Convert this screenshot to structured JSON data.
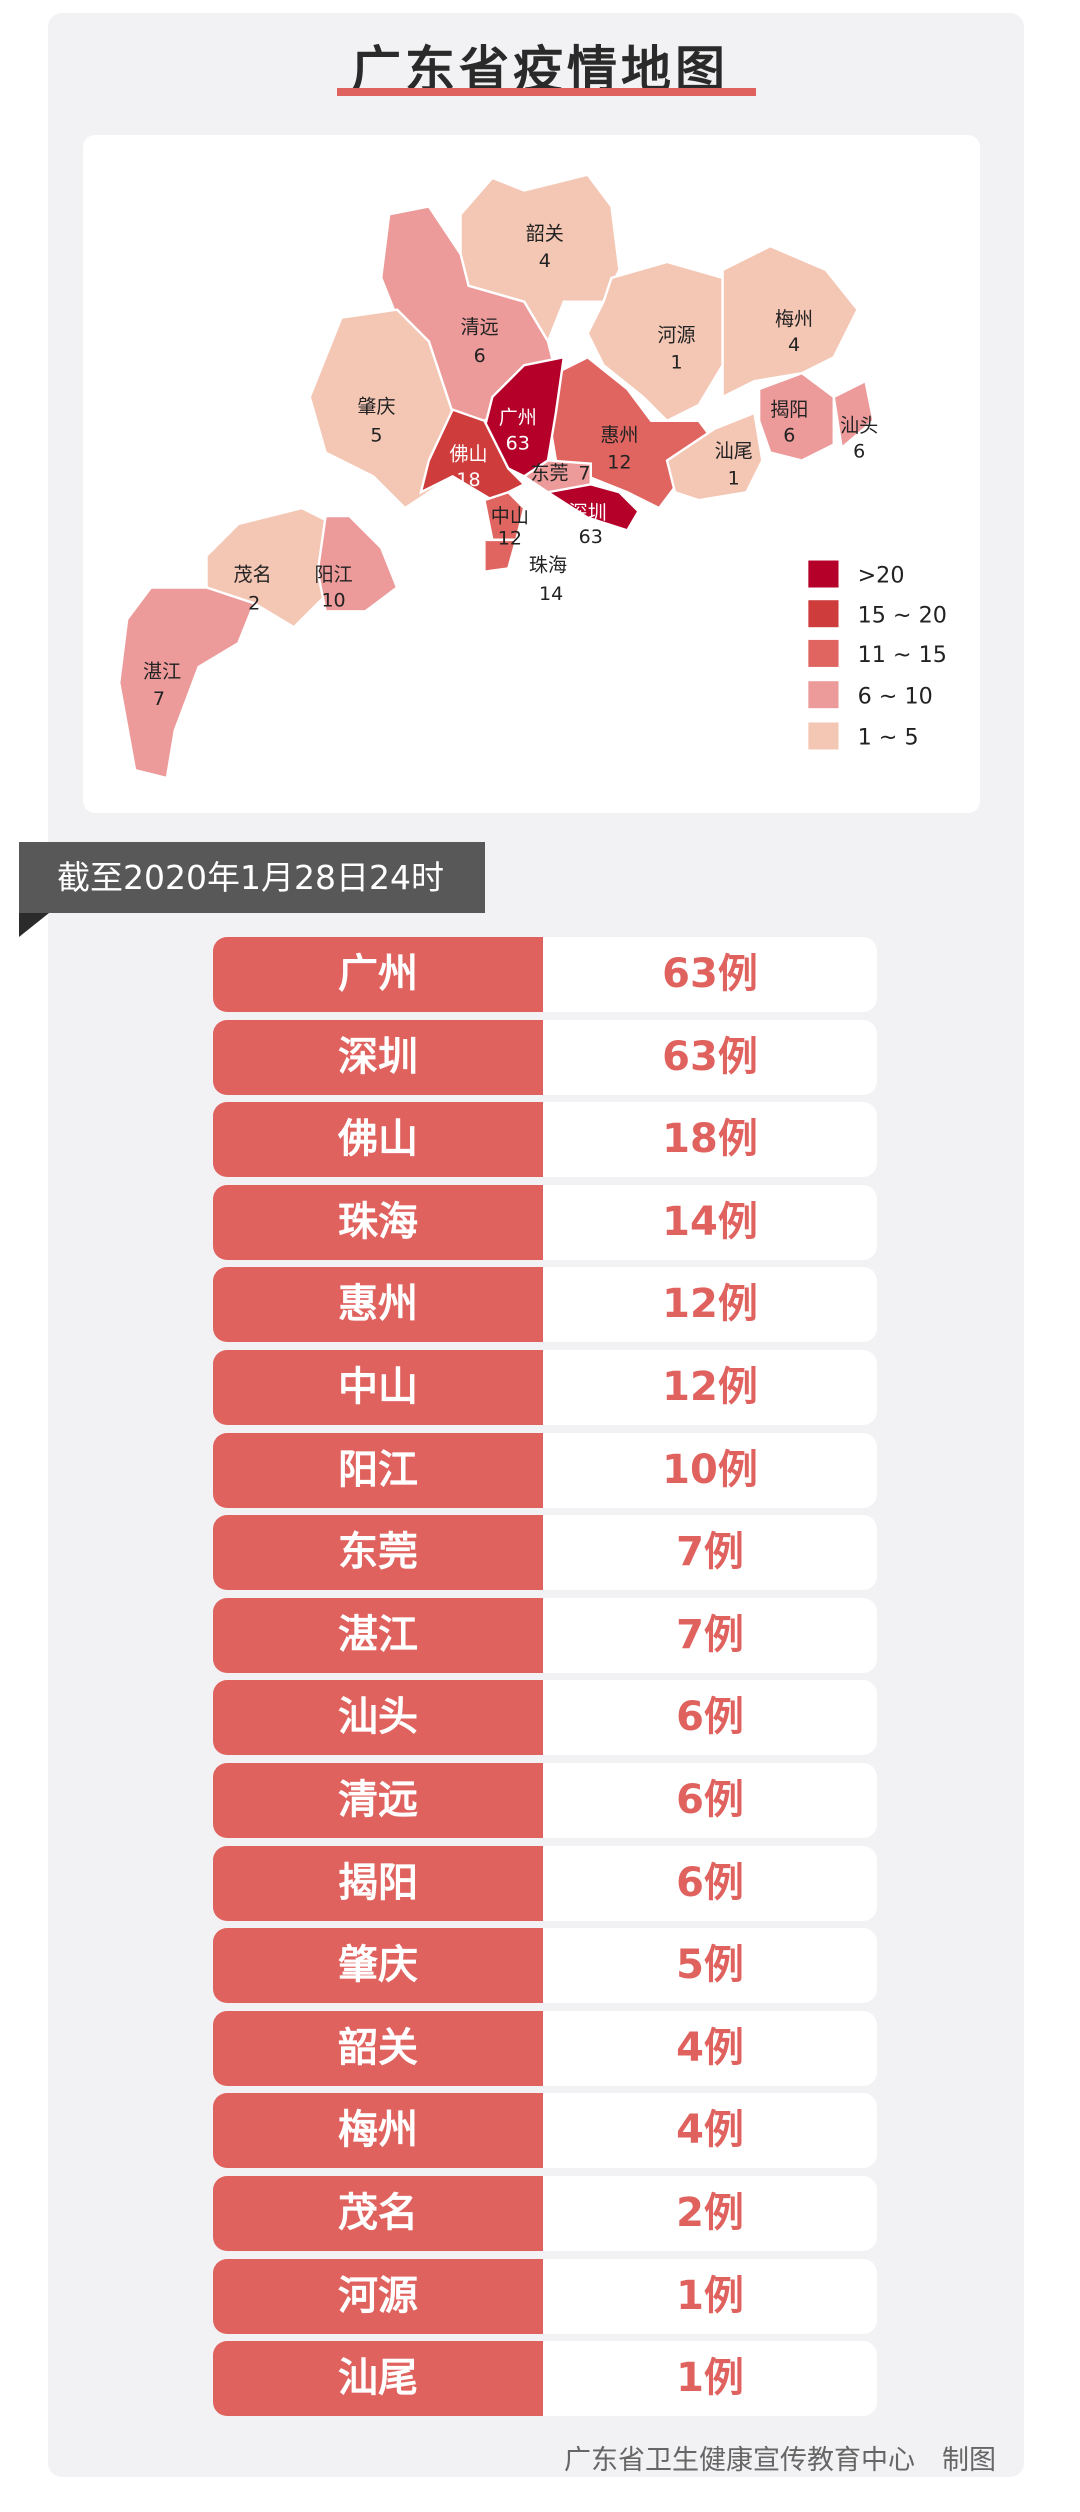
{
  "title": "广东省疫情地图",
  "colors": {
    "gt20": "#b5002a",
    "15_20": "#cf3c3c",
    "11_15": "#e06460",
    "6_10": "#ec9a9a",
    "1_5": "#f4c6b4",
    "row": "#e0625f"
  },
  "map": {
    "labels": {
      "shaoguan": {
        "name": "韶关",
        "value": "4"
      },
      "qingyuan": {
        "name": "清远",
        "value": "6"
      },
      "zhaoqing": {
        "name": "肇庆",
        "value": "5"
      },
      "heyuan": {
        "name": "河源",
        "value": "1"
      },
      "meizhou": {
        "name": "梅州",
        "value": "4"
      },
      "guangzhou": {
        "name": "广州",
        "value": "63"
      },
      "foshan": {
        "name": "佛山",
        "value": "18"
      },
      "huizhou": {
        "name": "惠州",
        "value": "12"
      },
      "dongguan": {
        "name": "东莞",
        "value": "7"
      },
      "shenzhen": {
        "name": "深圳",
        "value": "63"
      },
      "zhongshan": {
        "name": "中山",
        "value": "12"
      },
      "zhuhai": {
        "name": "珠海",
        "value": "14"
      },
      "shanwei": {
        "name": "汕尾",
        "value": "1"
      },
      "jieyang": {
        "name": "揭阳",
        "value": "6"
      },
      "shantou": {
        "name": "汕头",
        "value": "6"
      },
      "maoming": {
        "name": "茂名",
        "value": "2"
      },
      "yangjiang": {
        "name": "阳江",
        "value": "10"
      },
      "zhanjiang": {
        "name": "湛江",
        "value": "7"
      }
    },
    "legend": [
      ">20",
      "15 ~ 20",
      "11 ~ 15",
      "6 ~ 10",
      "1 ~ 5"
    ]
  },
  "banner": "截至2020年1月28日24时",
  "rows": [
    {
      "city": "广州",
      "count": "63例"
    },
    {
      "city": "深圳",
      "count": "63例"
    },
    {
      "city": "佛山",
      "count": "18例"
    },
    {
      "city": "珠海",
      "count": "14例"
    },
    {
      "city": "惠州",
      "count": "12例"
    },
    {
      "city": "中山",
      "count": "12例"
    },
    {
      "city": "阳江",
      "count": "10例"
    },
    {
      "city": "东莞",
      "count": "7例"
    },
    {
      "city": "湛江",
      "count": "7例"
    },
    {
      "city": "汕头",
      "count": "6例"
    },
    {
      "city": "清远",
      "count": "6例"
    },
    {
      "city": "揭阳",
      "count": "6例"
    },
    {
      "city": "肇庆",
      "count": "5例"
    },
    {
      "city": "韶关",
      "count": "4例"
    },
    {
      "city": "梅州",
      "count": "4例"
    },
    {
      "city": "茂名",
      "count": "2例"
    },
    {
      "city": "河源",
      "count": "1例"
    },
    {
      "city": "汕尾",
      "count": "1例"
    }
  ],
  "footer": "广东省卫生健康宣传教育中心　制图"
}
